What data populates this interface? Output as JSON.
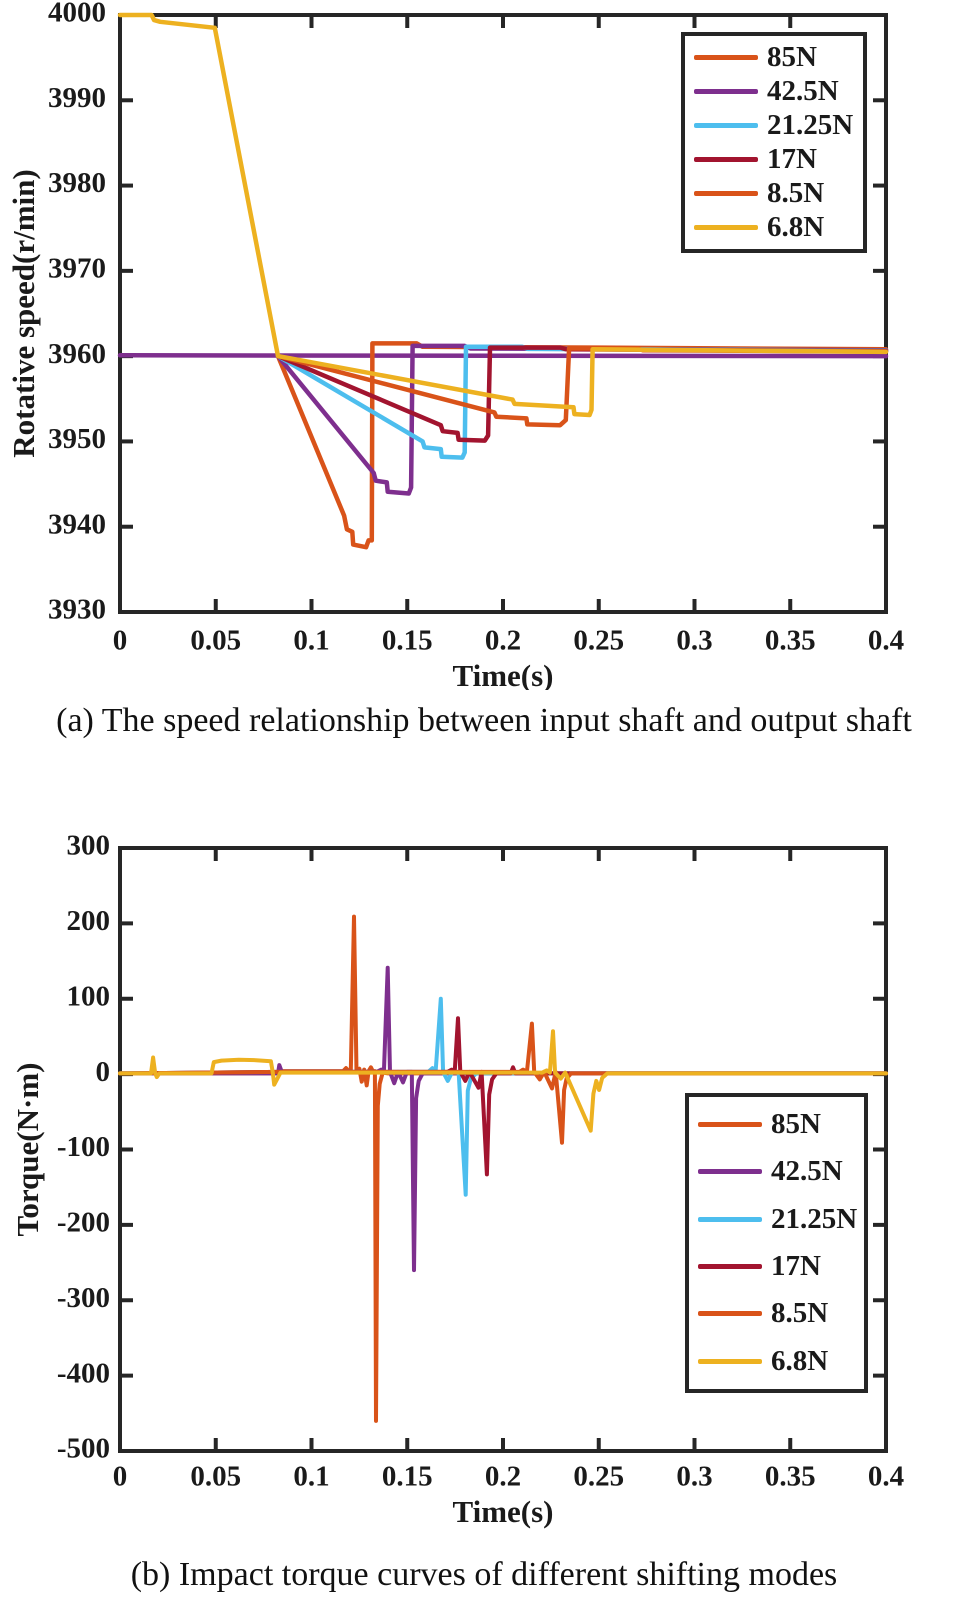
{
  "figure": {
    "caption_a": "(a) The speed relationship between input shaft and output shaft",
    "caption_b": "(b) Impact torque curves of different shifting modes"
  },
  "colors": {
    "axis": "#262626",
    "text": "#1a1a1a",
    "orange": "#D95319",
    "purple": "#7E2F8E",
    "lightblue": "#4DBEEE",
    "darkred": "#A2142F",
    "gold": "#EDB120"
  },
  "chart_data": [
    {
      "id": "speed",
      "type": "line",
      "title": "",
      "xlabel": "Time(s)",
      "ylabel": "Rotative speed(r/min)",
      "xlim": [
        0,
        0.4
      ],
      "ylim": [
        3930,
        4000
      ],
      "grid": false,
      "legend_position": "upper right",
      "xticks": [
        0,
        0.05,
        0.1,
        0.15,
        0.2,
        0.25,
        0.3,
        0.35,
        0.4
      ],
      "xtick_labels": [
        "0",
        "0.05",
        "0.1",
        "0.15",
        "0.2",
        "0.25",
        "0.3",
        "0.35",
        "0.4"
      ],
      "yticks": [
        3930,
        3940,
        3950,
        3960,
        3970,
        3980,
        3990,
        4000
      ],
      "ytick_labels": [
        "3930",
        "3940",
        "3950",
        "3960",
        "3970",
        "3980",
        "3990",
        "4000"
      ],
      "legend": [
        {
          "label": "85N",
          "color": "#D95319"
        },
        {
          "label": "42.5N",
          "color": "#7E2F8E"
        },
        {
          "label": "21.25N",
          "color": "#4DBEEE"
        },
        {
          "label": "17N",
          "color": "#A2142F"
        },
        {
          "label": "8.5N",
          "color": "#D95319"
        },
        {
          "label": "6.8N",
          "color": "#EDB120"
        }
      ],
      "series": [
        {
          "name": "output-shaft",
          "color": "#7E2F8E",
          "width": 4.5,
          "points": [
            [
              0,
              3960.1
            ],
            [
              0.4,
              3960.0
            ]
          ]
        },
        {
          "name": "85N",
          "color": "#D95319",
          "width": 4.5,
          "points": [
            [
              0.0825,
              3960
            ],
            [
              0.117,
              3941.3
            ],
            [
              0.1185,
              3939.7
            ],
            [
              0.1213,
              3939.4
            ],
            [
              0.1218,
              3937.9
            ],
            [
              0.1285,
              3937.6
            ],
            [
              0.1298,
              3938.4
            ],
            [
              0.1315,
              3938.4
            ],
            [
              0.1318,
              3961.5
            ],
            [
              0.155,
              3961.5
            ],
            [
              0.158,
              3961.1
            ],
            [
              0.25,
              3961.0
            ],
            [
              0.4,
              3960.8
            ]
          ]
        },
        {
          "name": "42.5N",
          "color": "#7E2F8E",
          "width": 4.5,
          "points": [
            [
              0.0825,
              3960
            ],
            [
              0.1325,
              3946.3
            ],
            [
              0.1335,
              3945.4
            ],
            [
              0.1393,
              3945.2
            ],
            [
              0.1398,
              3944.1
            ],
            [
              0.1508,
              3943.9
            ],
            [
              0.152,
              3944.6
            ],
            [
              0.1528,
              3961.2
            ],
            [
              0.18,
              3961.2
            ],
            [
              0.183,
              3960.9
            ],
            [
              0.4,
              3960.7
            ]
          ]
        },
        {
          "name": "21.25N",
          "color": "#4DBEEE",
          "width": 4.5,
          "points": [
            [
              0.0825,
              3960
            ],
            [
              0.158,
              3950.0
            ],
            [
              0.159,
              3949.3
            ],
            [
              0.1675,
              3949.1
            ],
            [
              0.168,
              3948.2
            ],
            [
              0.1788,
              3948.1
            ],
            [
              0.18,
              3948.7
            ],
            [
              0.1807,
              3961.1
            ],
            [
              0.21,
              3961.1
            ],
            [
              0.213,
              3960.85
            ],
            [
              0.4,
              3960.65
            ]
          ]
        },
        {
          "name": "17N",
          "color": "#A2142F",
          "width": 4.5,
          "points": [
            [
              0.0825,
              3960
            ],
            [
              0.1675,
              3951.9
            ],
            [
              0.1685,
              3951.2
            ],
            [
              0.1763,
              3951.0
            ],
            [
              0.1768,
              3950.2
            ],
            [
              0.1905,
              3950.1
            ],
            [
              0.1922,
              3950.7
            ],
            [
              0.1932,
              3961.0
            ],
            [
              0.23,
              3961.0
            ],
            [
              0.233,
              3960.8
            ],
            [
              0.4,
              3960.6
            ]
          ]
        },
        {
          "name": "8.5N",
          "color": "#D95319",
          "width": 4.5,
          "points": [
            [
              0.0825,
              3960
            ],
            [
              0.1955,
              3953.4
            ],
            [
              0.1965,
              3952.9
            ],
            [
              0.2122,
              3952.7
            ],
            [
              0.2127,
              3952.0
            ],
            [
              0.2298,
              3951.9
            ],
            [
              0.2328,
              3952.5
            ],
            [
              0.2345,
              3960.9
            ],
            [
              0.27,
              3960.9
            ],
            [
              0.273,
              3960.7
            ],
            [
              0.4,
              3960.55
            ]
          ]
        },
        {
          "name": "6.8N",
          "color": "#EDB120",
          "width": 4.5,
          "points": [
            [
              0,
              4000
            ],
            [
              0.0165,
              4000
            ],
            [
              0.0178,
              3999.4
            ],
            [
              0.021,
              3999.2
            ],
            [
              0.0495,
              3998.5
            ],
            [
              0.0825,
              3960
            ],
            [
              0.205,
              3954.9
            ],
            [
              0.206,
              3954.4
            ],
            [
              0.2368,
              3954.0
            ],
            [
              0.2373,
              3953.2
            ],
            [
              0.2452,
              3953.1
            ],
            [
              0.2462,
              3953.7
            ],
            [
              0.2468,
              3960.8
            ],
            [
              0.4,
              3960.5
            ]
          ]
        }
      ]
    },
    {
      "id": "torque",
      "type": "line",
      "title": "",
      "xlabel": "Time(s)",
      "ylabel": "Torque(N·m)",
      "xlim": [
        0,
        0.4
      ],
      "ylim": [
        -500,
        300
      ],
      "grid": false,
      "legend_position": "middle right",
      "xticks": [
        0,
        0.05,
        0.1,
        0.15,
        0.2,
        0.25,
        0.3,
        0.35,
        0.4
      ],
      "xtick_labels": [
        "0",
        "0.05",
        "0.1",
        "0.15",
        "0.2",
        "0.25",
        "0.3",
        "0.35",
        "0.4"
      ],
      "yticks": [
        -500,
        -400,
        -300,
        -200,
        -100,
        0,
        100,
        200,
        300
      ],
      "ytick_labels": [
        "-500",
        "-400",
        "-300",
        "-200",
        "-100",
        "0",
        "100",
        "200",
        "300"
      ],
      "legend": [
        {
          "label": "85N",
          "color": "#D95319"
        },
        {
          "label": "42.5N",
          "color": "#7E2F8E"
        },
        {
          "label": "21.25N",
          "color": "#4DBEEE"
        },
        {
          "label": "17N",
          "color": "#A2142F"
        },
        {
          "label": "8.5N",
          "color": "#D95319"
        },
        {
          "label": "6.8N",
          "color": "#EDB120"
        }
      ],
      "series": [
        {
          "name": "85N",
          "color": "#D95319",
          "width": 4,
          "points": [
            [
              0,
              1
            ],
            [
              0.082,
              1
            ],
            [
              0.083,
              4
            ],
            [
              0.1165,
              4
            ],
            [
              0.118,
              8
            ],
            [
              0.1195,
              4
            ],
            [
              0.1205,
              4
            ],
            [
              0.1222,
              209
            ],
            [
              0.1235,
              4
            ],
            [
              0.125,
              7
            ],
            [
              0.1262,
              -10
            ],
            [
              0.1275,
              6
            ],
            [
              0.1288,
              -15
            ],
            [
              0.1298,
              4
            ],
            [
              0.131,
              9
            ],
            [
              0.132,
              4
            ],
            [
              0.1331,
              4
            ],
            [
              0.1337,
              -460
            ],
            [
              0.1346,
              -42
            ],
            [
              0.1356,
              -13
            ],
            [
              0.1372,
              2
            ],
            [
              0.14,
              1
            ],
            [
              0.4,
              1
            ]
          ]
        },
        {
          "name": "42.5N",
          "color": "#7E2F8E",
          "width": 4,
          "points": [
            [
              0,
              1
            ],
            [
              0.0825,
              1
            ],
            [
              0.0832,
              12
            ],
            [
              0.0845,
              3
            ],
            [
              0.134,
              3
            ],
            [
              0.1365,
              6
            ],
            [
              0.1378,
              3
            ],
            [
              0.1398,
              141
            ],
            [
              0.141,
              3
            ],
            [
              0.1432,
              -12
            ],
            [
              0.1452,
              3
            ],
            [
              0.1478,
              -11
            ],
            [
              0.1498,
              3
            ],
            [
              0.1524,
              3
            ],
            [
              0.1535,
              -260
            ],
            [
              0.1546,
              -32
            ],
            [
              0.156,
              -9
            ],
            [
              0.158,
              1
            ],
            [
              0.4,
              1
            ]
          ]
        },
        {
          "name": "21.25N",
          "color": "#4DBEEE",
          "width": 4,
          "points": [
            [
              0,
              1
            ],
            [
              0.083,
              3
            ],
            [
              0.161,
              3
            ],
            [
              0.1632,
              8
            ],
            [
              0.1648,
              3
            ],
            [
              0.1675,
              100
            ],
            [
              0.1687,
              3
            ],
            [
              0.1712,
              -9
            ],
            [
              0.1735,
              3
            ],
            [
              0.1768,
              3
            ],
            [
              0.1805,
              -160
            ],
            [
              0.1816,
              -22
            ],
            [
              0.1832,
              -6
            ],
            [
              0.186,
              1
            ],
            [
              0.4,
              1
            ]
          ]
        },
        {
          "name": "17N",
          "color": "#A2142F",
          "width": 4,
          "points": [
            [
              0,
              1
            ],
            [
              0.083,
              3
            ],
            [
              0.171,
              3
            ],
            [
              0.1732,
              6
            ],
            [
              0.1748,
              3
            ],
            [
              0.1765,
              74
            ],
            [
              0.1777,
              3
            ],
            [
              0.1803,
              -9
            ],
            [
              0.1825,
              3
            ],
            [
              0.1872,
              -18
            ],
            [
              0.1888,
              3
            ],
            [
              0.1916,
              -133
            ],
            [
              0.1928,
              -27
            ],
            [
              0.1943,
              -7
            ],
            [
              0.1965,
              1
            ],
            [
              0.204,
              1
            ],
            [
              0.2052,
              9
            ],
            [
              0.2065,
              1
            ],
            [
              0.4,
              1
            ]
          ]
        },
        {
          "name": "8.5N",
          "color": "#D95319",
          "width": 4,
          "points": [
            [
              0,
              1
            ],
            [
              0.083,
              3
            ],
            [
              0.2085,
              3
            ],
            [
              0.2105,
              6
            ],
            [
              0.2125,
              3
            ],
            [
              0.2151,
              67
            ],
            [
              0.2163,
              3
            ],
            [
              0.2192,
              -7
            ],
            [
              0.2215,
              3
            ],
            [
              0.2256,
              -19
            ],
            [
              0.2275,
              3
            ],
            [
              0.2308,
              -91
            ],
            [
              0.2319,
              -21
            ],
            [
              0.2332,
              -6
            ],
            [
              0.2355,
              1
            ],
            [
              0.4,
              1
            ]
          ]
        },
        {
          "name": "6.8N",
          "color": "#EDB120",
          "width": 4,
          "points": [
            [
              0,
              1
            ],
            [
              0.0162,
              1
            ],
            [
              0.0173,
              22
            ],
            [
              0.0184,
              1
            ],
            [
              0.0192,
              -4
            ],
            [
              0.0205,
              1
            ],
            [
              0.0478,
              1
            ],
            [
              0.049,
              16
            ],
            [
              0.053,
              18
            ],
            [
              0.062,
              19
            ],
            [
              0.071,
              18.5
            ],
            [
              0.0788,
              17
            ],
            [
              0.0798,
              2
            ],
            [
              0.0805,
              -14
            ],
            [
              0.0822,
              -6
            ],
            [
              0.0838,
              2
            ],
            [
              0.2205,
              2
            ],
            [
              0.2228,
              5
            ],
            [
              0.2245,
              2
            ],
            [
              0.2261,
              57
            ],
            [
              0.2272,
              2
            ],
            [
              0.2302,
              -6
            ],
            [
              0.2325,
              2
            ],
            [
              0.2458,
              -75
            ],
            [
              0.2472,
              -26
            ],
            [
              0.2487,
              -9
            ],
            [
              0.2502,
              -21
            ],
            [
              0.2518,
              -5
            ],
            [
              0.2545,
              1
            ],
            [
              0.4,
              1
            ]
          ]
        }
      ]
    }
  ]
}
